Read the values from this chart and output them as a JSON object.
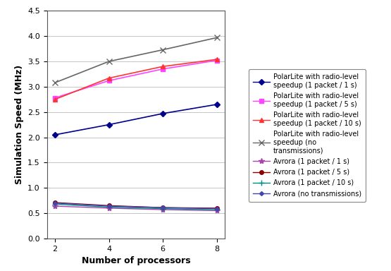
{
  "x": [
    2,
    4,
    6,
    8
  ],
  "series": [
    {
      "label": "PolarLite with radio-level\nspeedup (1 packet / 1 s)",
      "values": [
        2.05,
        2.25,
        2.47,
        2.65
      ],
      "color": "#00008B",
      "marker": "D",
      "markersize": 4,
      "linestyle": "-",
      "linewidth": 1.2,
      "markerfilled": true
    },
    {
      "label": "PolarLite with radio-level\nspeedup (1 packet / 5 s)",
      "values": [
        2.78,
        3.12,
        3.35,
        3.52
      ],
      "color": "#FF44FF",
      "marker": "s",
      "markersize": 4,
      "linestyle": "-",
      "linewidth": 1.2,
      "markerfilled": true
    },
    {
      "label": "PolarLite with radio-level\nspeedup (1 packet / 10 s)",
      "values": [
        2.75,
        3.17,
        3.4,
        3.54
      ],
      "color": "#FF3333",
      "marker": "^",
      "markersize": 5,
      "linestyle": "-",
      "linewidth": 1.2,
      "markerfilled": true
    },
    {
      "label": "PolarLite with radio-level\nspeedup (no\ntransmissions)",
      "values": [
        3.08,
        3.5,
        3.73,
        3.97
      ],
      "color": "#666666",
      "marker": "x",
      "markersize": 6,
      "linestyle": "-",
      "linewidth": 1.2,
      "markerfilled": false
    },
    {
      "label": "Avrora (1 packet / 1 s)",
      "values": [
        0.64,
        0.6,
        0.57,
        0.55
      ],
      "color": "#AA44AA",
      "marker": "*",
      "markersize": 6,
      "linestyle": "-",
      "linewidth": 1.0,
      "markerfilled": true
    },
    {
      "label": "Avrora (1 packet / 5 s)",
      "values": [
        0.71,
        0.65,
        0.61,
        0.6
      ],
      "color": "#8B0000",
      "marker": "o",
      "markersize": 4,
      "linestyle": "-",
      "linewidth": 1.0,
      "markerfilled": true
    },
    {
      "label": "Avrora (1 packet / 10 s)",
      "values": [
        0.68,
        0.62,
        0.59,
        0.57
      ],
      "color": "#008B8B",
      "marker": "+",
      "markersize": 6,
      "linestyle": "-",
      "linewidth": 1.0,
      "markerfilled": false
    },
    {
      "label": "Avrora (no transmissions)",
      "values": [
        0.7,
        0.64,
        0.61,
        0.59
      ],
      "color": "#4444AA",
      "marker": "D",
      "markersize": 3,
      "linestyle": "-",
      "linewidth": 1.0,
      "markerfilled": true
    }
  ],
  "xlabel": "Number of processors",
  "ylabel": "Simulation Speed (MHz)",
  "ylim": [
    0,
    4.5
  ],
  "yticks": [
    0,
    0.5,
    1.0,
    1.5,
    2.0,
    2.5,
    3.0,
    3.5,
    4.0,
    4.5
  ],
  "xticks": [
    2,
    4,
    6,
    8
  ],
  "grid_color": "#bbbbbb",
  "background_color": "#ffffff",
  "font_size": 8,
  "legend_fontsize": 7
}
